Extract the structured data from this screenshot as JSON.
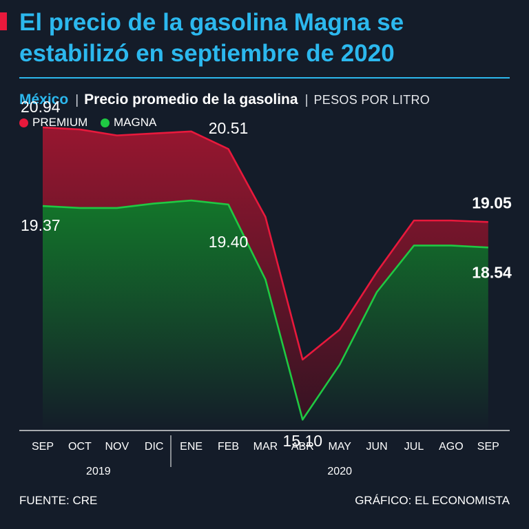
{
  "header": {
    "title": "El precio de la gasolina Magna se estabilizó en septiembre de 2020",
    "country": "México",
    "description": "Precio promedio de la gasolina",
    "units": "PESOS POR LITRO"
  },
  "footer": {
    "source": "FUENTE: CRE",
    "credit": "GRÁFICO: EL ECONOMISTA"
  },
  "colors": {
    "premium": "#e8193c",
    "magna": "#1fc943",
    "title": "#2cb8ee",
    "background": "#141c29"
  },
  "chart_data": {
    "type": "area",
    "title": "Precio promedio de la gasolina",
    "ylabel": "PESOS POR LITRO",
    "xlabel": "",
    "ylim": [
      13.3,
      22.0
    ],
    "categories": [
      "SEP",
      "OCT",
      "NOV",
      "DIC",
      "ENE",
      "FEB",
      "MAR",
      "ABR",
      "MAY",
      "JUN",
      "JUL",
      "AGO",
      "SEP"
    ],
    "year_groups": [
      {
        "label": "2019",
        "start": 0,
        "end": 3
      },
      {
        "label": "2020",
        "start": 4,
        "end": 12
      }
    ],
    "series": [
      {
        "name": "PREMIUM",
        "color": "#e8193c",
        "values": [
          20.94,
          20.9,
          20.78,
          20.82,
          20.86,
          20.51,
          19.15,
          16.3,
          16.9,
          18.05,
          19.08,
          19.08,
          19.05
        ]
      },
      {
        "name": "MAGNA",
        "color": "#1fc943",
        "values": [
          19.37,
          19.33,
          19.33,
          19.42,
          19.48,
          19.4,
          17.9,
          15.1,
          16.2,
          17.65,
          18.58,
          18.58,
          18.54
        ]
      }
    ],
    "annotations": [
      {
        "series": 0,
        "index": 0,
        "text": "20.94",
        "bold": false
      },
      {
        "series": 1,
        "index": 0,
        "text": "19.37",
        "bold": false
      },
      {
        "series": 0,
        "index": 5,
        "text": "20.51",
        "bold": false
      },
      {
        "series": 1,
        "index": 5,
        "text": "19.40",
        "bold": false
      },
      {
        "series": 1,
        "index": 7,
        "text": "15.10",
        "bold": false
      },
      {
        "series": 0,
        "index": 12,
        "text": "19.05",
        "bold": true
      },
      {
        "series": 1,
        "index": 12,
        "text": "18.54",
        "bold": true
      }
    ]
  }
}
